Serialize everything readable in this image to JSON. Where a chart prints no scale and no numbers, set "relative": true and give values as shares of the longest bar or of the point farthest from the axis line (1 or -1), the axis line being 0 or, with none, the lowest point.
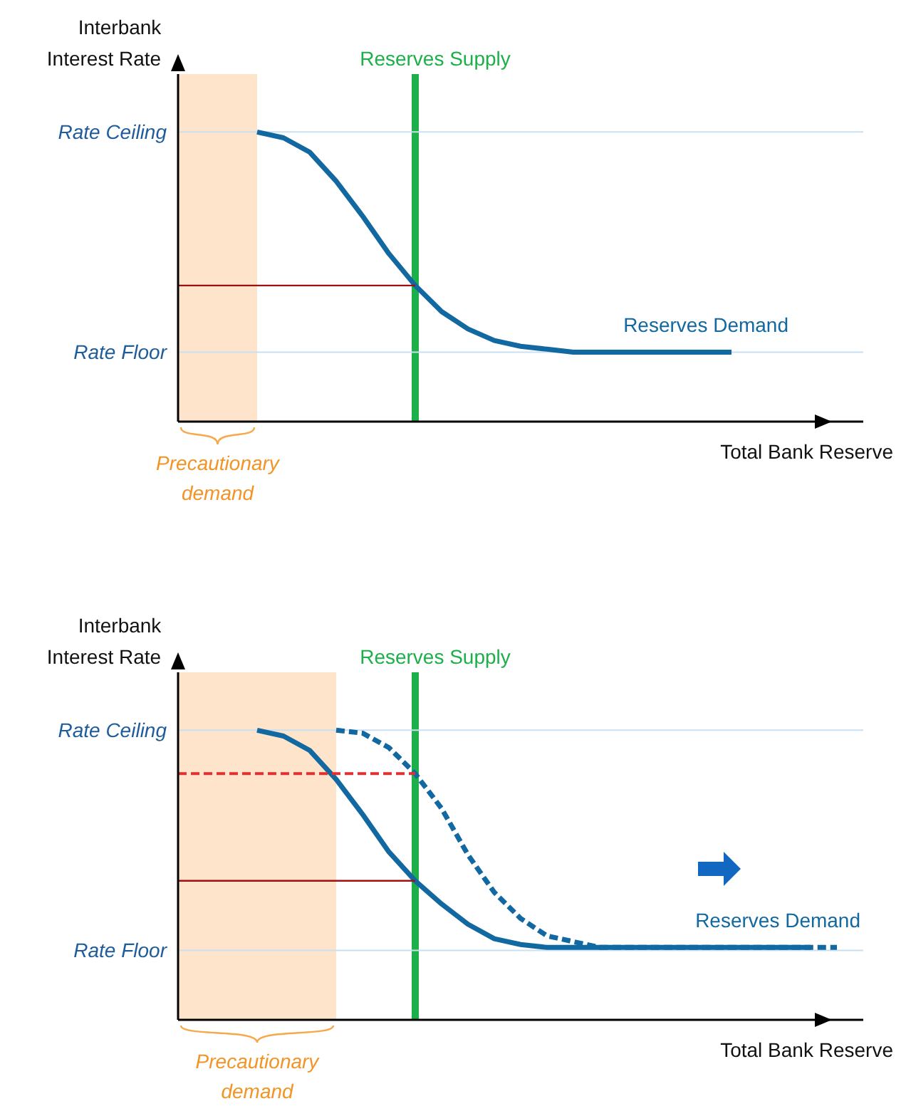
{
  "chart_data": [
    {
      "type": "line",
      "relative": true,
      "xlabel": "Total Bank Reserve",
      "ylabel": "Interbank Interest Rate",
      "legend": false,
      "marker": "none",
      "grid": false,
      "categories": [
        null,
        null,
        null,
        null,
        null,
        null,
        null,
        null,
        null,
        null,
        null,
        null,
        null,
        null,
        null,
        null,
        null,
        null,
        null,
        null,
        null,
        null,
        null,
        null,
        null,
        null,
        null
      ],
      "ref_lines": [
        {
          "axis": "y",
          "value": 1.0,
          "label": "Rate Ceiling",
          "color": "#c9dff2"
        },
        {
          "axis": "y",
          "value": 0.24,
          "label": "Rate Floor",
          "color": "#c9dff2"
        }
      ],
      "annotations": [
        "Reserves Supply",
        "Precautionary demand"
      ],
      "series": [
        {
          "name": "Reserves Demand",
          "color": "#1268a0",
          "line_style": "solid",
          "values": [
            null,
            null,
            null,
            1.0,
            0.98,
            0.93,
            0.83,
            0.71,
            0.58,
            0.47,
            0.38,
            0.32,
            0.28,
            0.26,
            0.25,
            0.24,
            0.24,
            0.24,
            0.24,
            0.24,
            0.24,
            0.24,
            null,
            null,
            null,
            null,
            null
          ]
        },
        {
          "color": "#a01010",
          "line_style": "solid",
          "values": [
            0.47,
            0.47,
            0.47,
            0.47,
            0.47,
            0.47,
            0.47,
            0.47,
            0.47,
            0.47,
            null,
            null,
            null,
            null,
            null,
            null,
            null,
            null,
            null,
            null,
            null,
            null,
            null,
            null,
            null,
            null,
            null
          ]
        }
      ]
    },
    {
      "type": "line",
      "relative": true,
      "xlabel": "Total Bank Reserve",
      "ylabel": "Interbank Interest Rate",
      "legend": false,
      "marker": "none",
      "grid": false,
      "categories": [
        null,
        null,
        null,
        null,
        null,
        null,
        null,
        null,
        null,
        null,
        null,
        null,
        null,
        null,
        null,
        null,
        null,
        null,
        null,
        null,
        null,
        null,
        null,
        null,
        null,
        null,
        null
      ],
      "ref_lines": [
        {
          "axis": "y",
          "value": 1.0,
          "label": "Rate Ceiling",
          "color": "#c9dff2"
        },
        {
          "axis": "y",
          "value": 0.24,
          "label": "Rate Floor",
          "color": "#c9dff2"
        }
      ],
      "annotations": [
        "Reserves Supply",
        "Precautionary demand"
      ],
      "series": [
        {
          "color": "#1268a0",
          "line_style": "solid",
          "values": [
            null,
            null,
            null,
            1.0,
            0.98,
            0.93,
            0.83,
            0.71,
            0.58,
            0.48,
            0.4,
            0.33,
            0.28,
            0.26,
            0.25,
            0.25,
            0.25,
            0.25,
            0.25,
            0.25,
            0.25,
            0.25,
            0.25,
            0.25,
            0.25,
            null,
            null
          ]
        },
        {
          "name": "Reserves Demand",
          "color": "#1268a0",
          "line_style": "dashed",
          "values": [
            null,
            null,
            null,
            null,
            null,
            null,
            1.0,
            0.99,
            0.94,
            0.85,
            0.73,
            0.57,
            0.44,
            0.35,
            0.29,
            0.27,
            0.25,
            0.25,
            0.25,
            0.25,
            0.25,
            0.25,
            0.25,
            0.25,
            0.25,
            0.25,
            null
          ]
        },
        {
          "color": "#a01010",
          "line_style": "solid",
          "values": [
            0.48,
            0.48,
            0.48,
            0.48,
            0.48,
            0.48,
            0.48,
            0.48,
            0.48,
            0.48,
            null,
            null,
            null,
            null,
            null,
            null,
            null,
            null,
            null,
            null,
            null,
            null,
            null,
            null,
            null,
            null,
            null
          ]
        },
        {
          "color": "#e03030",
          "line_style": "dashed",
          "values": [
            0.85,
            0.85,
            0.85,
            0.85,
            0.85,
            0.85,
            0.85,
            0.85,
            0.85,
            0.85,
            null,
            null,
            null,
            null,
            null,
            null,
            null,
            null,
            null,
            null,
            null,
            null,
            null,
            null,
            null,
            null,
            null
          ]
        }
      ]
    }
  ]
}
